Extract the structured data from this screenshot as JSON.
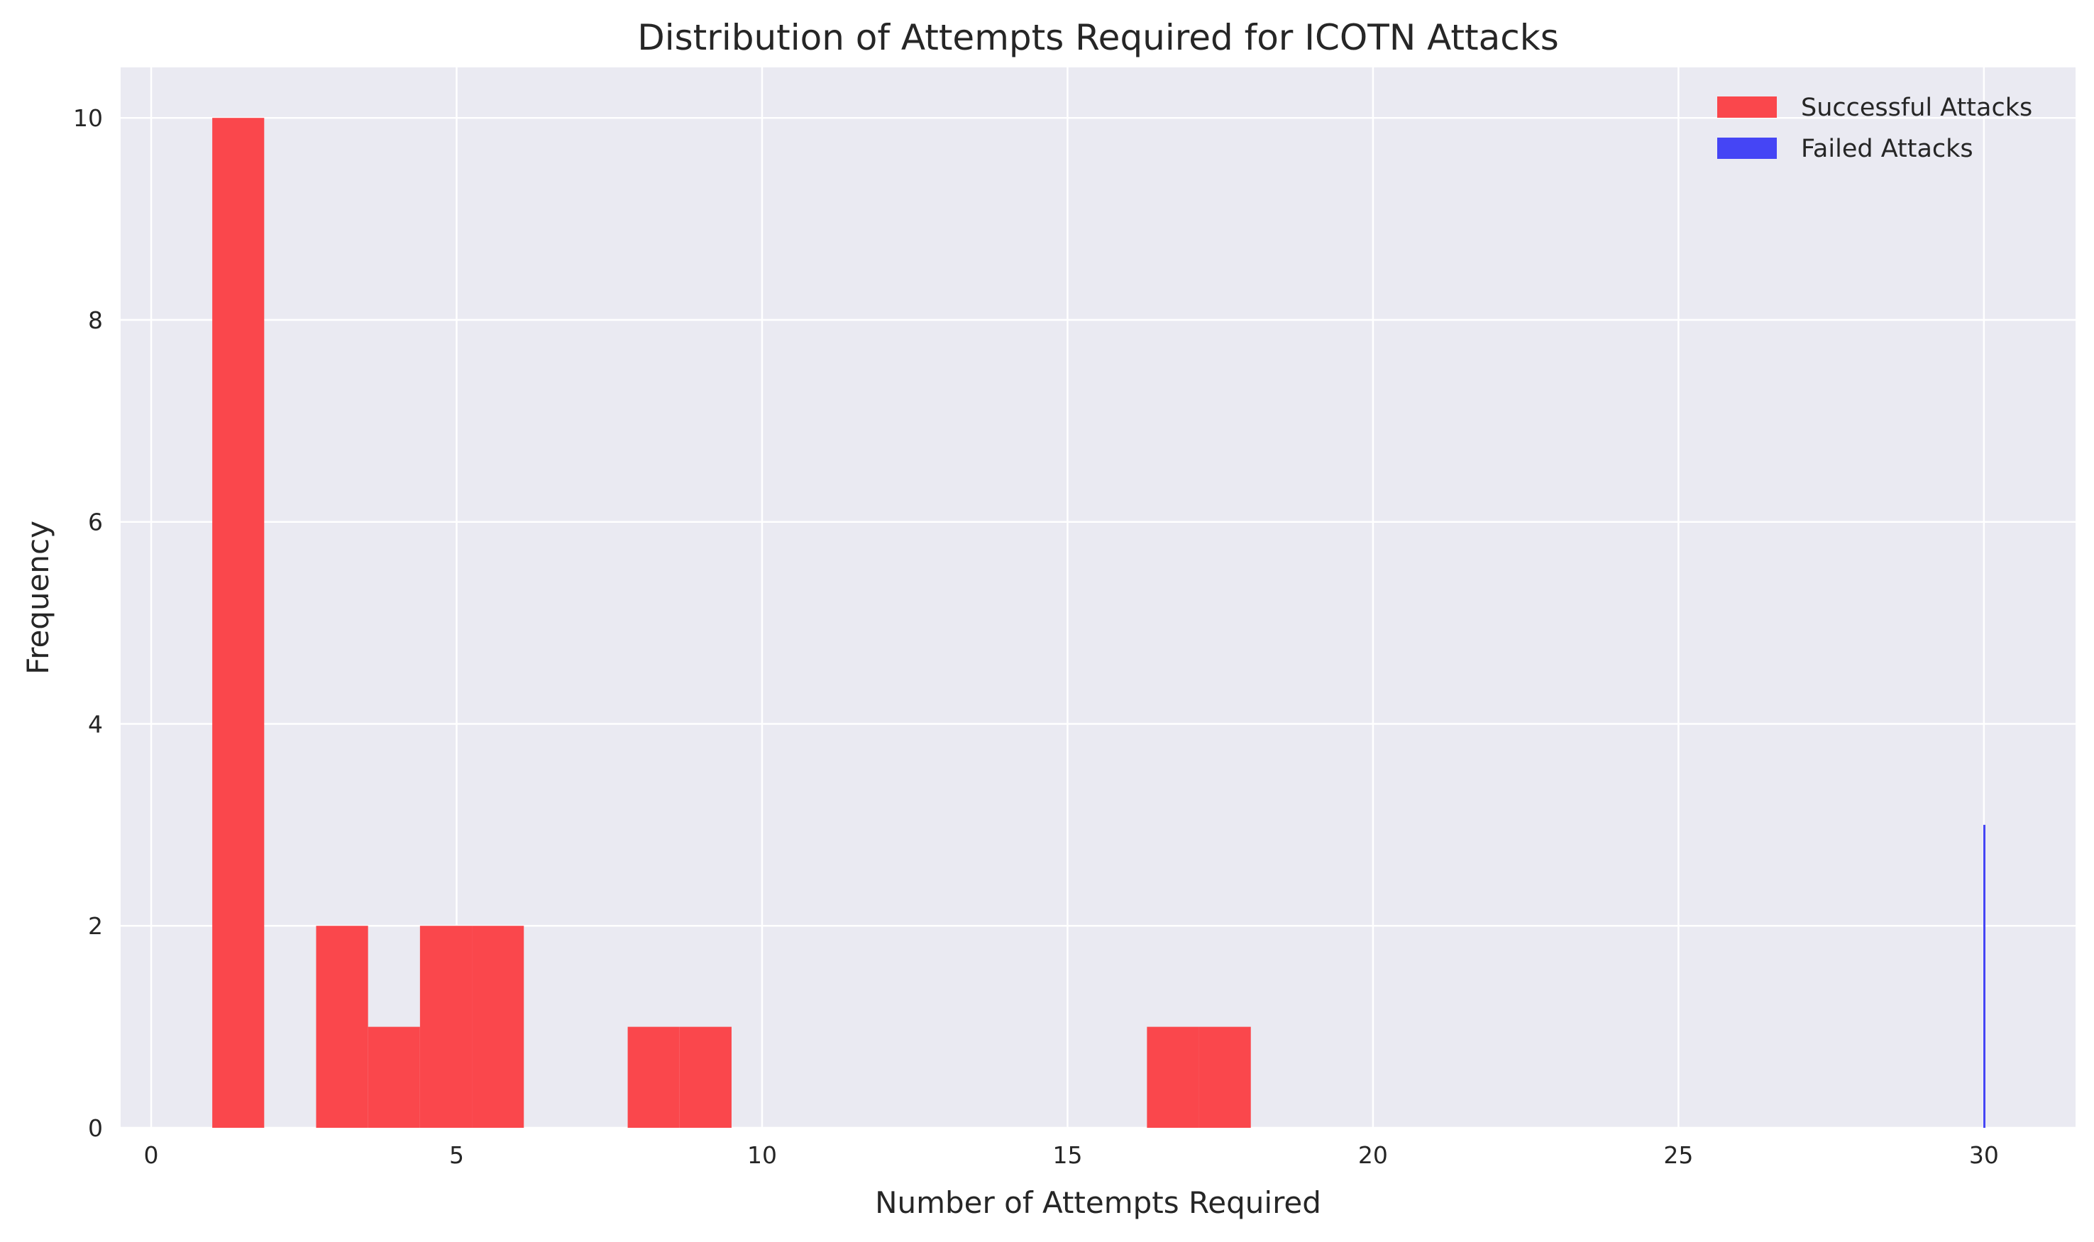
{
  "chart_data": {
    "type": "histogram",
    "title": "Distribution of Attempts Required for ICOTN Attacks",
    "xlabel": "Number of Attempts Required",
    "ylabel": "Frequency",
    "xlim": [
      -0.5,
      31.5
    ],
    "ylim": [
      0,
      10.5
    ],
    "xticks": [
      0,
      5,
      10,
      15,
      20,
      25,
      30
    ],
    "yticks": [
      0,
      2,
      4,
      6,
      8,
      10
    ],
    "grid": true,
    "legend_position": "top-right",
    "background": "#eaeaf2",
    "series": [
      {
        "name": "Successful Attacks",
        "color": "#fa474c",
        "bins": [
          {
            "x0": 1.0,
            "x1": 1.85,
            "count": 10
          },
          {
            "x0": 2.7,
            "x1": 3.55,
            "count": 2
          },
          {
            "x0": 3.55,
            "x1": 4.4,
            "count": 1
          },
          {
            "x0": 4.4,
            "x1": 5.25,
            "count": 2
          },
          {
            "x0": 5.25,
            "x1": 6.1,
            "count": 2
          },
          {
            "x0": 7.8,
            "x1": 8.65,
            "count": 1
          },
          {
            "x0": 8.65,
            "x1": 9.5,
            "count": 1
          },
          {
            "x0": 16.3,
            "x1": 17.15,
            "count": 1
          },
          {
            "x0": 17.15,
            "x1": 18.0,
            "count": 1
          }
        ]
      },
      {
        "name": "Failed Attacks",
        "color": "#4545f5",
        "bins": [
          {
            "x0": 29.99,
            "x1": 30.02,
            "count": 3
          }
        ]
      }
    ]
  }
}
